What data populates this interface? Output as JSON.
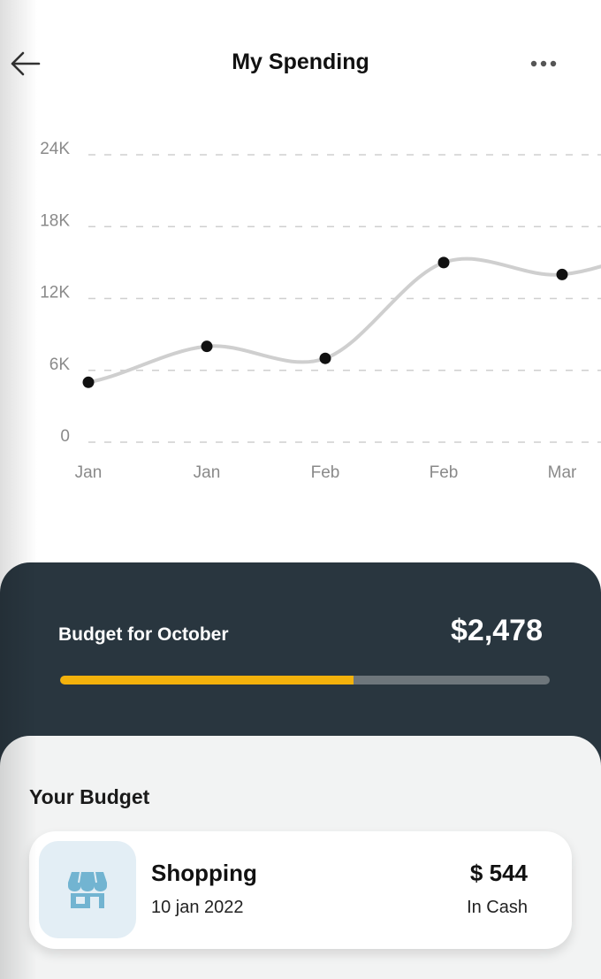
{
  "header": {
    "title": "My Spending",
    "back_icon": "arrow-left-icon",
    "menu_icon": "more-horizontal-icon"
  },
  "chart_data": {
    "type": "line",
    "categories": [
      "Jan",
      "Jan",
      "Feb",
      "Feb",
      "Mar"
    ],
    "values": [
      5000,
      8000,
      7000,
      15000,
      14000
    ],
    "y_ticks": [
      "24K",
      "18K",
      "12K",
      "6K",
      "0"
    ],
    "y_tick_values": [
      24000,
      18000,
      12000,
      6000,
      0
    ],
    "ylim": [
      0,
      24000
    ],
    "grid": "horizontal dashed",
    "line_color": "#cfcfcf",
    "point_color": "#111111"
  },
  "budget": {
    "label": "Budget for October",
    "amount": "$2,478",
    "progress": 0.6,
    "bar_color": "#f3b20c",
    "track_color": "#6e767b"
  },
  "your_budget": {
    "title": "Your Budget",
    "items": [
      {
        "icon": "store-icon",
        "name": "Shopping",
        "date": "10 jan 2022",
        "amount": "$ 544",
        "method": "In Cash"
      }
    ]
  },
  "colors": {
    "panel_dark": "#29363f",
    "accent": "#f3b20c",
    "icon_bg": "#e3eef5",
    "icon_color": "#72b4d1"
  }
}
